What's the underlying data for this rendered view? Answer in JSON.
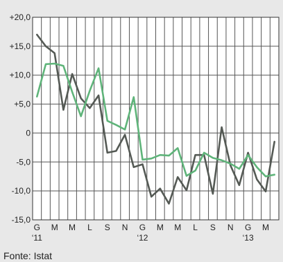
{
  "chart_data": {
    "type": "line",
    "title": "",
    "xlabel": "",
    "ylabel": "",
    "ylim": [
      -15,
      20
    ],
    "y_ticks": [
      {
        "value": 20,
        "label": "+20,0"
      },
      {
        "value": 15,
        "label": "+15,0"
      },
      {
        "value": 10,
        "label": "+10,0"
      },
      {
        "value": 5,
        "label": "+5,0"
      },
      {
        "value": 0,
        "label": "0"
      },
      {
        "value": -5,
        "label": "-5,0"
      },
      {
        "value": -10,
        "label": "-10,0"
      },
      {
        "value": -15,
        "label": "-15,0"
      }
    ],
    "x_labels": [
      {
        "index": 0,
        "label": "G"
      },
      {
        "index": 2,
        "label": "M"
      },
      {
        "index": 4,
        "label": "M"
      },
      {
        "index": 6,
        "label": "L"
      },
      {
        "index": 8,
        "label": "S"
      },
      {
        "index": 10,
        "label": "N"
      },
      {
        "index": 12,
        "label": "G"
      },
      {
        "index": 14,
        "label": "M"
      },
      {
        "index": 16,
        "label": "M"
      },
      {
        "index": 18,
        "label": "L"
      },
      {
        "index": 20,
        "label": "S"
      },
      {
        "index": 22,
        "label": "N"
      },
      {
        "index": 24,
        "label": "G"
      },
      {
        "index": 26,
        "label": "M"
      }
    ],
    "year_labels": [
      {
        "index": 0,
        "label": "‘11"
      },
      {
        "index": 12,
        "label": "‘12"
      },
      {
        "index": 24,
        "label": "‘13"
      }
    ],
    "grid": true,
    "legend": "none",
    "series": [
      {
        "color": "#555a55",
        "values": [
          17.0,
          15.0,
          13.8,
          4.0,
          10.2,
          6.0,
          4.3,
          6.5,
          -3.4,
          -3.1,
          -0.3,
          -5.9,
          -5.4,
          -11.0,
          -9.6,
          -12.2,
          -7.6,
          -9.9,
          -3.8,
          -3.8,
          -10.5,
          1.0,
          -5.6,
          -9.0,
          -3.4,
          -8.0,
          -10.1,
          -1.5
        ]
      },
      {
        "color": "#5fb47a",
        "values": [
          6.3,
          11.9,
          12.0,
          11.6,
          7.1,
          2.9,
          7.3,
          11.2,
          2.1,
          1.4,
          0.6,
          6.2,
          -4.6,
          -4.4,
          -3.8,
          -3.9,
          -2.6,
          -7.4,
          -6.5,
          -3.4,
          -4.3,
          -4.7,
          -5.3,
          -6.2,
          -3.8,
          -5.9,
          -7.5,
          -7.2
        ]
      }
    ]
  },
  "source": "Fonte: Istat"
}
